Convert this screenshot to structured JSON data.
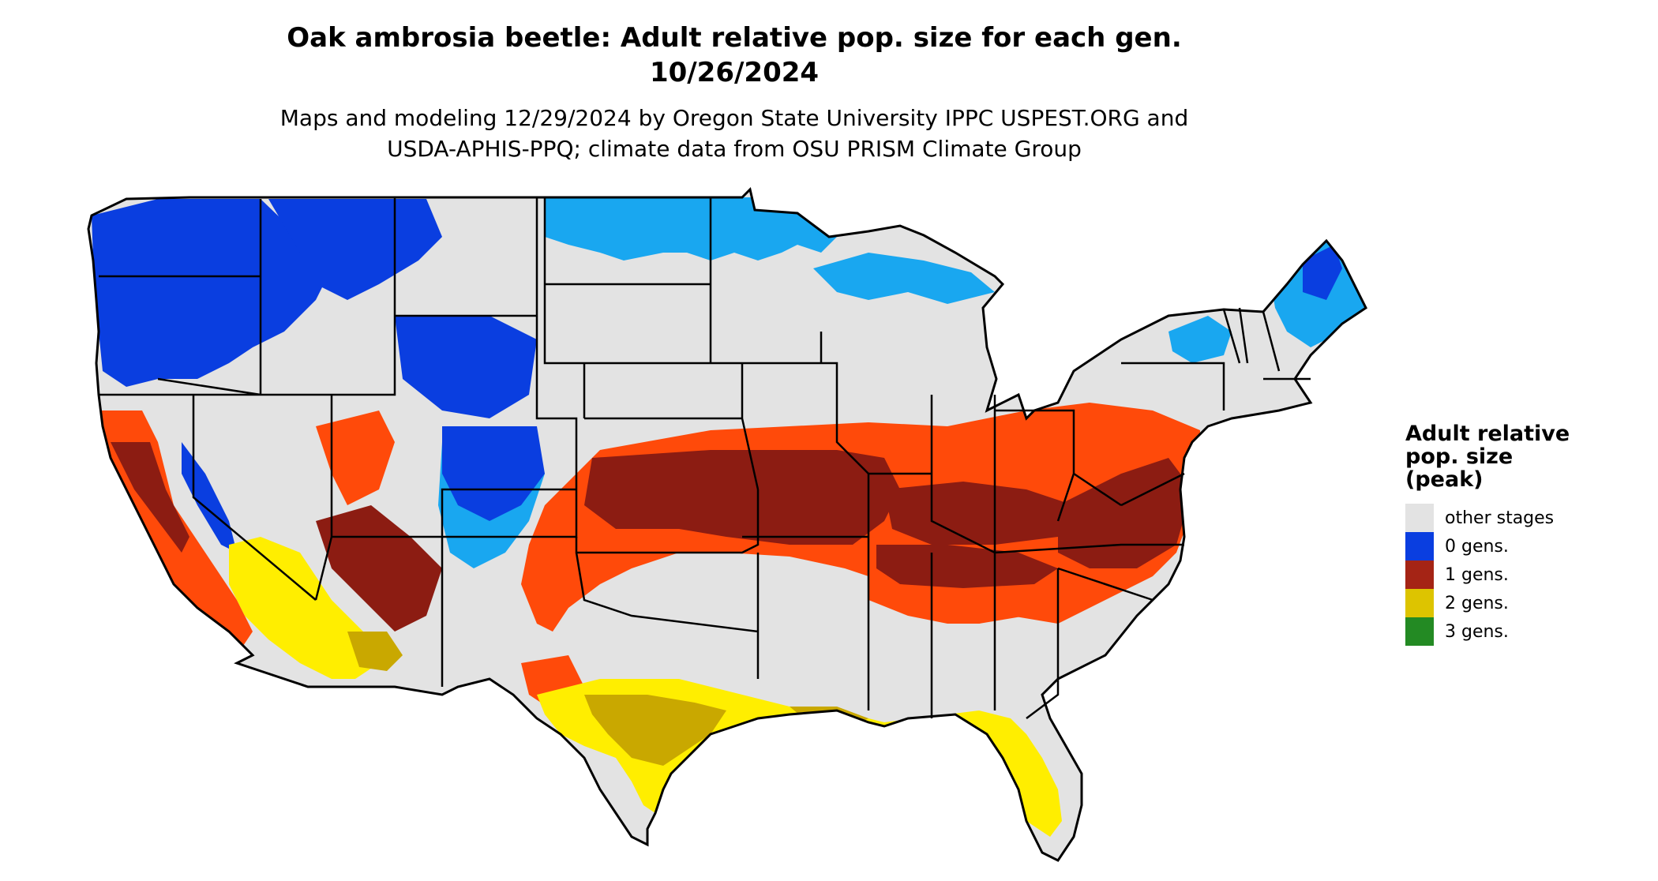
{
  "header": {
    "title_line1": "Oak ambrosia beetle: Adult relative pop. size for each gen.",
    "title_line2": "10/26/2024",
    "subtitle_line1": "Maps and modeling 12/29/2024 by Oregon State University IPPC USPEST.ORG and",
    "subtitle_line2": "USDA-APHIS-PPQ; climate data from OSU PRISM Climate Group"
  },
  "legend": {
    "title_line1": "Adult relative",
    "title_line2": "pop. size",
    "title_line3": "(peak)",
    "items": [
      {
        "label": "other stages",
        "color": "#e3e3e3"
      },
      {
        "label": "0 gens.",
        "color": "#0a3ee0"
      },
      {
        "label": "1 gens.",
        "color": "#a52415"
      },
      {
        "label": "2 gens.",
        "color": "#ddc400"
      },
      {
        "label": "3 gens.",
        "color": "#238a23"
      }
    ]
  },
  "map": {
    "region": "Contiguous United States",
    "colors": {
      "other_stages": "#e3e3e3",
      "gen0_dark": "#0a3ee0",
      "gen0_light": "#19a7f0",
      "gen1_light": "#ff4a0a",
      "gen1_dark": "#8c1c12",
      "gen2_bright": "#ffee00",
      "gen2_olive": "#c9a800",
      "state_line": "#000000"
    }
  }
}
